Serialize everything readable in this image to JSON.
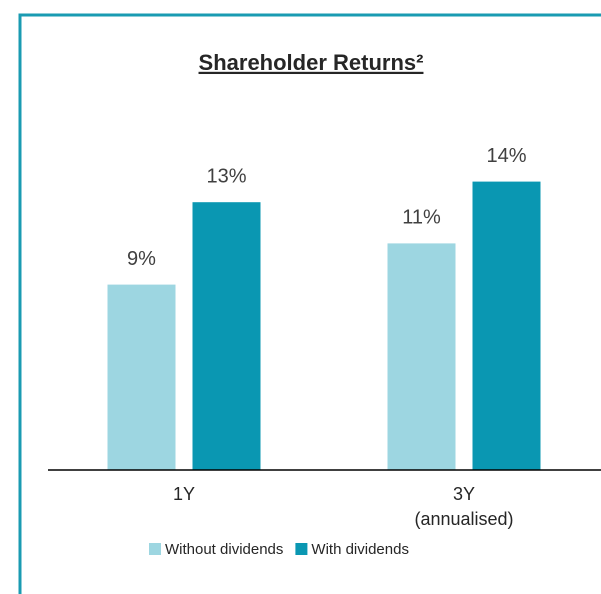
{
  "chart_data": {
    "type": "bar",
    "title": "Shareholder Returns²",
    "categories": [
      [
        "1Y"
      ],
      [
        "3Y",
        "(annualised)"
      ]
    ],
    "series": [
      {
        "name": "Without dividends",
        "color": "#9dd6e1",
        "values": [
          9,
          11
        ],
        "value_labels": [
          "9%",
          "11%"
        ]
      },
      {
        "name": "With dividends",
        "color": "#0a97b2",
        "values": [
          13,
          14
        ],
        "value_labels": [
          "13%",
          "14%"
        ]
      }
    ],
    "ylim": [
      0,
      20
    ]
  }
}
